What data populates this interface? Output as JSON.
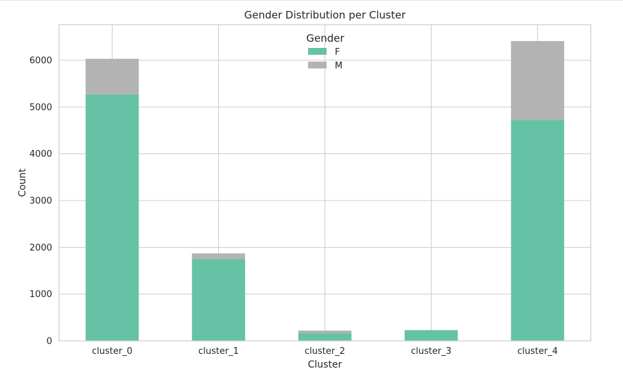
{
  "chart_data": {
    "type": "bar",
    "stacked": true,
    "title": "Gender Distribution per Cluster",
    "xlabel": "Cluster",
    "ylabel": "Count",
    "categories": [
      "cluster_0",
      "cluster_1",
      "cluster_2",
      "cluster_3",
      "cluster_4"
    ],
    "series": [
      {
        "name": "F",
        "color": "#66c2a5",
        "values": [
          5270,
          1750,
          160,
          230,
          4720
        ]
      },
      {
        "name": "M",
        "color": "#b3b3b3",
        "values": [
          760,
          120,
          60,
          0,
          1690
        ]
      }
    ],
    "ylim": [
      0,
      6760
    ],
    "yticks": [
      0,
      1000,
      2000,
      3000,
      4000,
      5000,
      6000
    ],
    "grid": true,
    "legend": {
      "title": "Gender",
      "placement": "top-center"
    }
  }
}
